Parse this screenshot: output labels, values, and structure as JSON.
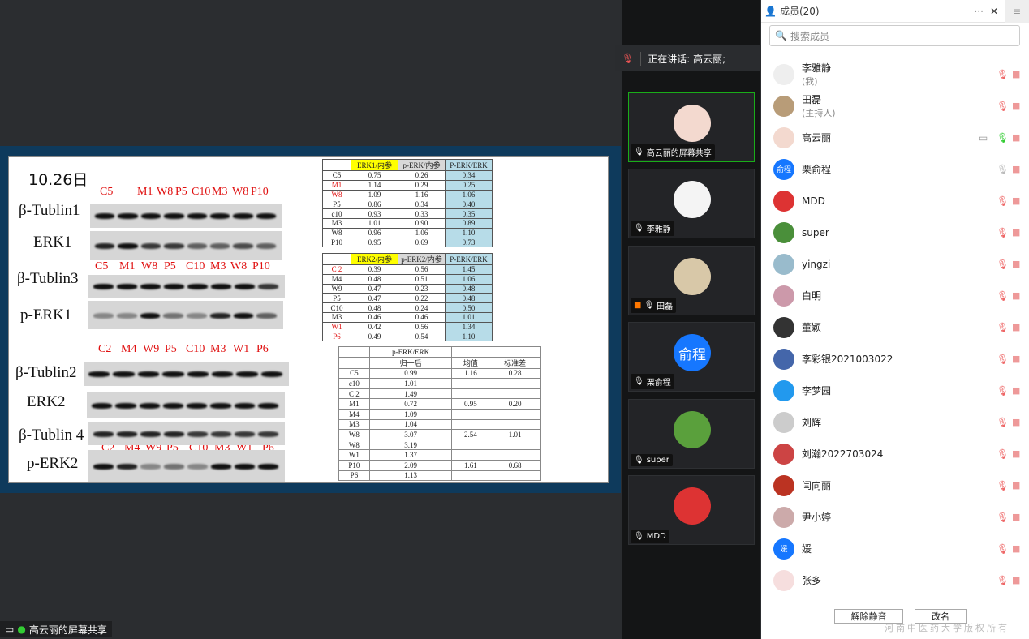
{
  "slide": {
    "date": "10.26日",
    "lanes1": [
      "C5",
      "M1",
      "W8",
      "P5",
      "C10",
      "M3",
      "W8",
      "P10"
    ],
    "lanes2": [
      "C5",
      "M1",
      "W8",
      "P5",
      "C10",
      "M3",
      "W8",
      "P10"
    ],
    "lanes3": [
      "C2",
      "M4",
      "W9",
      "P5",
      "C10",
      "M3",
      "W1",
      "P6"
    ],
    "lanes4": [
      "C2",
      "M4",
      "W9",
      "P5",
      "C10",
      "M3",
      "W1",
      "P6"
    ],
    "blots": [
      "β-Tublin1",
      "ERK1",
      "β-Tublin3",
      "p-ERK1",
      "β-Tublin2",
      "ERK2",
      "β-Tublin 4",
      "p-ERK2"
    ],
    "table1": {
      "headers": [
        "",
        "ERK1/内参",
        "p-ERK/内参",
        "P-ERK/ERK"
      ],
      "rows": [
        [
          "C5",
          "0.75",
          "0.26",
          "0.34"
        ],
        [
          "M1",
          "1.14",
          "0.29",
          "0.25"
        ],
        [
          "W8",
          "1.09",
          "1.16",
          "1.06"
        ],
        [
          "P5",
          "0.86",
          "0.34",
          "0.40"
        ],
        [
          "c10",
          "0.93",
          "0.33",
          "0.35"
        ],
        [
          "M3",
          "1.01",
          "0.90",
          "0.89"
        ],
        [
          "W8",
          "0.96",
          "1.06",
          "1.10"
        ],
        [
          "P10",
          "0.95",
          "0.69",
          "0.73"
        ]
      ]
    },
    "table2": {
      "headers": [
        "",
        "ERK2/内参",
        "p-ERK2/内参",
        "P-ERK/ERK"
      ],
      "rows": [
        [
          "C 2",
          "0.39",
          "0.56",
          "1.45"
        ],
        [
          "M4",
          "0.48",
          "0.51",
          "1.06"
        ],
        [
          "W9",
          "0.47",
          "0.23",
          "0.48"
        ],
        [
          "P5",
          "0.47",
          "0.22",
          "0.48"
        ],
        [
          "C10",
          "0.48",
          "0.24",
          "0.50"
        ],
        [
          "M3",
          "0.46",
          "0.46",
          "1.01"
        ],
        [
          "W1",
          "0.42",
          "0.56",
          "1.34"
        ],
        [
          "P6",
          "0.49",
          "0.54",
          "1.10"
        ]
      ]
    },
    "table3": {
      "header1": "p-ERK/ERK",
      "headers": [
        "",
        "归一后",
        "均值",
        "标准差"
      ],
      "rows": [
        [
          "C5",
          "0.99",
          "1.16",
          "0.28"
        ],
        [
          "c10",
          "1.01",
          "",
          ""
        ],
        [
          "C 2",
          "1.49",
          "",
          ""
        ],
        [
          "M1",
          "0.72",
          "0.95",
          "0.20"
        ],
        [
          "M4",
          "1.09",
          "",
          ""
        ],
        [
          "M3",
          "1.04",
          "",
          ""
        ],
        [
          "W8",
          "3.07",
          "2.54",
          "1.01"
        ],
        [
          "W8",
          "3.19",
          "",
          ""
        ],
        [
          "W1",
          "1.37",
          "",
          ""
        ],
        [
          "P10",
          "2.09",
          "1.61",
          "0.68"
        ],
        [
          "P6",
          "1.13",
          "",
          ""
        ]
      ]
    }
  },
  "share_label": "高云丽的屏幕共享",
  "speaking": "正在讲话: 高云丽;",
  "tiles": [
    {
      "name": "高云丽的屏幕共享",
      "avatar": "",
      "color": "#f3d9cf"
    },
    {
      "name": "李雅静",
      "avatar": "",
      "color": "#f4f4f4"
    },
    {
      "name": "田磊",
      "avatar": "",
      "color": "#d8c8a8"
    },
    {
      "name": "栗俞程",
      "avatar": "俞程",
      "color": "#1677ff"
    },
    {
      "name": "super",
      "avatar": "",
      "color": "#5aa03c"
    },
    {
      "name": "MDD",
      "avatar": "",
      "color": "#d33"
    }
  ],
  "panel": {
    "title": "成员(20)",
    "more": "···",
    "close": "✕",
    "search_placeholder": "搜索成员",
    "members": [
      {
        "name": "李雅静",
        "sub": "(我)",
        "color": "#eee"
      },
      {
        "name": "田磊",
        "sub": "(主持人)",
        "color": "#b89c78"
      },
      {
        "name": "高云丽",
        "color": "#f3d9cf"
      },
      {
        "name": "栗俞程",
        "avatar": "俞程",
        "color": "#1677ff"
      },
      {
        "name": "MDD",
        "color": "#d33"
      },
      {
        "name": "super",
        "color": "#4a8f3a"
      },
      {
        "name": "yingzi",
        "color": "#9bc"
      },
      {
        "name": "白明",
        "color": "#c9a"
      },
      {
        "name": "董颖",
        "color": "#333"
      },
      {
        "name": "李彩银2021003022",
        "color": "#46a"
      },
      {
        "name": "李梦园",
        "color": "#29e"
      },
      {
        "name": "刘辉",
        "color": "#ccc"
      },
      {
        "name": "刘瀚2022703024",
        "color": "#c44"
      },
      {
        "name": "闫向丽",
        "color": "#b32"
      },
      {
        "name": "尹小婷",
        "color": "#caa"
      },
      {
        "name": "媛",
        "avatar": "媛",
        "color": "#1677ff"
      },
      {
        "name": "张多",
        "color": "#f6dede"
      }
    ],
    "unmute_all": "解除静音",
    "rename": "改名"
  },
  "watermark": "河南中医药大学版权所有"
}
